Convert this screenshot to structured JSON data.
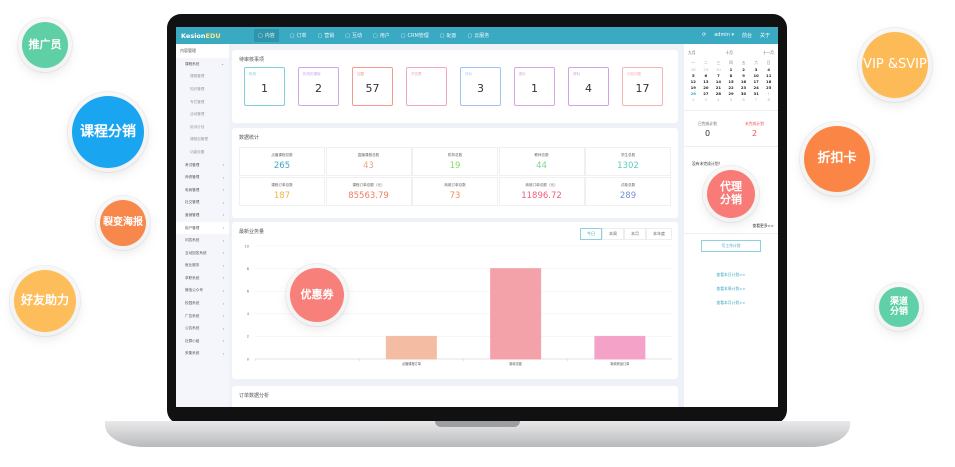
{
  "topbar": {
    "logo_a": "Kesion",
    "logo_b": "EDU",
    "nav": [
      "内容",
      "订单",
      "营销",
      "互动",
      "用户",
      "CRM管理",
      "配置",
      "云服务"
    ],
    "user": "admin ▾",
    "front": "前台",
    "about": "关于"
  },
  "sidebar": {
    "header": "内容管理",
    "group": "课程系统",
    "subs": [
      "课程管理",
      "知识管理",
      "专栏管理",
      "活动管理",
      "培训计划",
      "课程包管理",
      "功能设置"
    ],
    "items": [
      "考试管理",
      "师资管理",
      "电商管理",
      "社交管理",
      "营销管理",
      "用户管理",
      "问答系统",
      "互动回答系统",
      "就业服务",
      "求职系统",
      "微信公众号",
      "校园系统",
      "广告系统",
      "公告系统",
      "社群小组",
      "采集系统"
    ]
  },
  "pending": {
    "title": "待审核事项",
    "cards": [
      {
        "label": "机构",
        "value": "1",
        "color": "#7fcfdc"
      },
      {
        "label": "机构的课程",
        "value": "2",
        "color": "#d1a6e8"
      },
      {
        "label": "加盟",
        "value": "57",
        "color": "#f59a8c"
      },
      {
        "label": "开发票",
        "value": "",
        "color": "#f2a6c8"
      },
      {
        "label": "评价",
        "value": "3",
        "color": "#9cc4ef"
      },
      {
        "label": "图片",
        "value": "1",
        "color": "#d8a6e0"
      },
      {
        "label": "资料",
        "value": "4",
        "color": "#cfa3e6"
      },
      {
        "label": "问答问题",
        "value": "17",
        "color": "#f5b2b2"
      }
    ]
  },
  "stats": {
    "title": "数据统计",
    "items": [
      {
        "label": "点播课程总数",
        "value": "265",
        "color": "#3aa9c2"
      },
      {
        "label": "直播课程总数",
        "value": "43",
        "color": "#f2a27a"
      },
      {
        "label": "机构总数",
        "value": "19",
        "color": "#8cd96b"
      },
      {
        "label": "教师总数",
        "value": "44",
        "color": "#7bd38e"
      },
      {
        "label": "学生总数",
        "value": "1302",
        "color": "#5ccdc0"
      },
      {
        "label": "课程订单总数",
        "value": "187",
        "color": "#f5b54a"
      },
      {
        "label": "课程订单总额（元）",
        "value": "85563.79",
        "color": "#f07b62"
      },
      {
        "label": "商城订单总数",
        "value": "73",
        "color": "#f28b5a"
      },
      {
        "label": "商城订单总额（元）",
        "value": "11896.72",
        "color": "#f0607a"
      },
      {
        "label": "试卷总数",
        "value": "289",
        "color": "#7a8fd9"
      }
    ]
  },
  "business": {
    "title": "最新业务量",
    "tabs": [
      "今日",
      "本周",
      "本月",
      "本年度"
    ]
  },
  "chart_data": {
    "type": "bar",
    "title": "最新业务量",
    "categories": [
      "",
      "点播课程订单",
      "新增试卷",
      "新增商品订单"
    ],
    "values": [
      0,
      2,
      8,
      2
    ],
    "colors": [
      "#f4bca2",
      "#f4bca2",
      "#f4a2aa",
      "#f4a2c8"
    ],
    "ylim": [
      0,
      10
    ],
    "yticks": [
      "0",
      "2",
      "4",
      "6",
      "8",
      "10"
    ]
  },
  "orders": {
    "title": "订单数据分析"
  },
  "calendar": {
    "prev": "九月",
    "month": "十月",
    "next": "十一月",
    "week": [
      "一",
      "二",
      "三",
      "四",
      "五",
      "六",
      "日"
    ],
    "days": [
      "28",
      "29",
      "30",
      "1",
      "2",
      "3",
      "4",
      "5",
      "6",
      "7",
      "8",
      "9",
      "10",
      "11",
      "12",
      "13",
      "14",
      "15",
      "16",
      "17",
      "18",
      "19",
      "20",
      "21",
      "22",
      "23",
      "24",
      "25",
      "26",
      "27",
      "28",
      "29",
      "30",
      "31",
      "1",
      "2",
      "3",
      "4",
      "5",
      "6",
      "7",
      "8"
    ]
  },
  "plans": {
    "done_label": "已完成计划",
    "done": "0",
    "todo_label": "未完成计划",
    "todo": "2",
    "none": "没有未完成计划！",
    "more": "查看更多>>",
    "write": "写工作计划",
    "links": [
      "查看本日计划>>",
      "查看本周计划>>",
      "查看本月计划>>"
    ]
  },
  "bubbles": {
    "promoter": "推广员",
    "vip": "VIP &SVIP",
    "course": "课程分销",
    "poster": "裂变海报",
    "friend": "好友助力",
    "coupon": "优惠券",
    "discount": "折扣卡",
    "agent": "代理分销",
    "channel": "渠道分销"
  }
}
